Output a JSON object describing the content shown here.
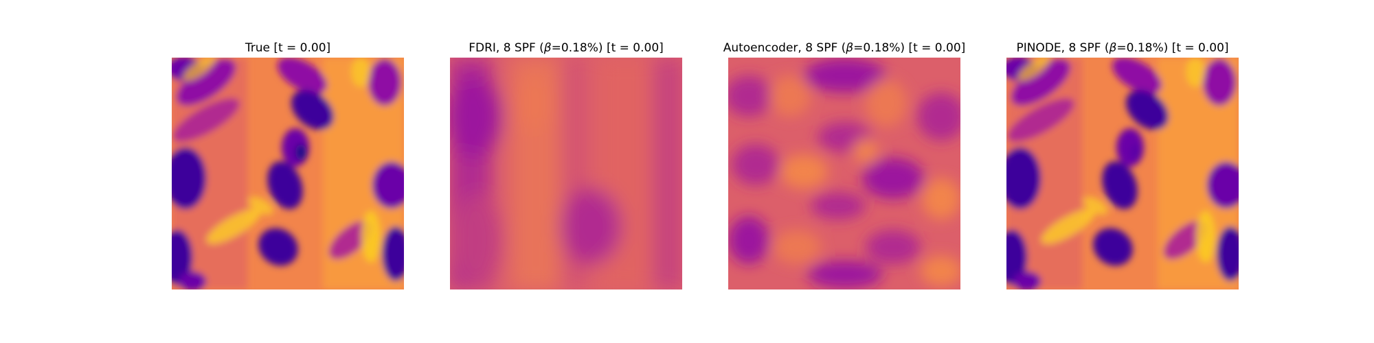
{
  "chart_data": [
    {
      "type": "heatmap",
      "title": "True [t = 0.00]",
      "title_parts": {
        "method": "True",
        "beta_prefix": "",
        "beta_value": "",
        "suffix": " [t = 0.00]"
      },
      "colormap": "plasma",
      "axes_visible": false,
      "field": "high-contrast vortical flow: deep purple elongated vortices on orange/yellow background"
    },
    {
      "type": "heatmap",
      "title": "FDRI, 8 SPF (β=0.18%) [t = 0.00]",
      "title_parts": {
        "method": "FDRI, 8 SPF (",
        "beta_prefix": "β",
        "beta_value": "=0.18%)",
        "suffix": " [t = 0.00]"
      },
      "colormap": "plasma",
      "axes_visible": false,
      "field": "smooth low-contrast field: magenta vertical bands on orange-pink background"
    },
    {
      "type": "heatmap",
      "title": "Autoencoder, 8 SPF (β=0.18%) [t = 0.00]",
      "title_parts": {
        "method": "Autoencoder, 8 SPF (",
        "beta_prefix": "β",
        "beta_value": "=0.18%)",
        "suffix": " [t = 0.00]"
      },
      "colormap": "plasma",
      "axes_visible": false,
      "field": "blurred medium-contrast blobs of magenta and orange"
    },
    {
      "type": "heatmap",
      "title": "PINODE, 8 SPF (β=0.18%) [t = 0.00]",
      "title_parts": {
        "method": "PINODE, 8 SPF (",
        "beta_prefix": "β",
        "beta_value": "=0.18%)",
        "suffix": " [t = 0.00]"
      },
      "colormap": "plasma",
      "axes_visible": false,
      "field": "close reconstruction of true field: purple vortices on orange/yellow background"
    }
  ],
  "colors": {
    "deep_purple": "#3d049b",
    "purple": "#6a00a8",
    "violet": "#8f0da4",
    "magenta": "#b12a90",
    "pink": "#cc4778",
    "salmon": "#e16462",
    "orange": "#f2844b",
    "light_orange": "#fca636",
    "yellow": "#fcce25"
  }
}
